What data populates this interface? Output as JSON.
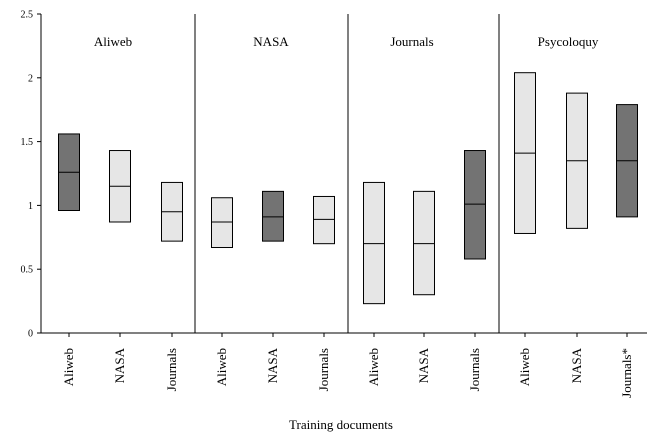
{
  "chart_data": {
    "type": "box",
    "ylim": [
      0,
      2.5
    ],
    "yticks": [
      "0",
      "0.5",
      "1",
      "1.5",
      "2",
      "2.5"
    ],
    "xlabel": "Training documents",
    "ylabel": "",
    "colors": {
      "light": "#e6e6e6",
      "dark": "#737373",
      "stroke": "#000000"
    },
    "groups": [
      {
        "title": "Aliweb",
        "boxes": [
          {
            "label": "Aliweb",
            "low": 0.96,
            "mid": 1.26,
            "high": 1.56,
            "shade": "dark"
          },
          {
            "label": "NASA",
            "low": 0.87,
            "mid": 1.15,
            "high": 1.43,
            "shade": "light"
          },
          {
            "label": "Journals",
            "low": 0.72,
            "mid": 0.95,
            "high": 1.18,
            "shade": "light"
          }
        ]
      },
      {
        "title": "NASA",
        "boxes": [
          {
            "label": "Aliweb",
            "low": 0.67,
            "mid": 0.87,
            "high": 1.06,
            "shade": "light"
          },
          {
            "label": "NASA",
            "low": 0.72,
            "mid": 0.91,
            "high": 1.11,
            "shade": "dark"
          },
          {
            "label": "Journals",
            "low": 0.7,
            "mid": 0.89,
            "high": 1.07,
            "shade": "light"
          }
        ]
      },
      {
        "title": "Journals",
        "boxes": [
          {
            "label": "Aliweb",
            "low": 0.23,
            "mid": 0.7,
            "high": 1.18,
            "shade": "light"
          },
          {
            "label": "NASA",
            "low": 0.3,
            "mid": 0.7,
            "high": 1.11,
            "shade": "light"
          },
          {
            "label": "Journals",
            "low": 0.58,
            "mid": 1.01,
            "high": 1.43,
            "shade": "dark"
          }
        ]
      },
      {
        "title": "Psycoloquy",
        "boxes": [
          {
            "label": "Aliweb",
            "low": 0.78,
            "mid": 1.41,
            "high": 2.04,
            "shade": "light"
          },
          {
            "label": "NASA",
            "low": 0.82,
            "mid": 1.35,
            "high": 1.88,
            "shade": "light"
          },
          {
            "label": "Journals*",
            "low": 0.91,
            "mid": 1.35,
            "high": 1.79,
            "shade": "dark"
          }
        ]
      }
    ]
  }
}
